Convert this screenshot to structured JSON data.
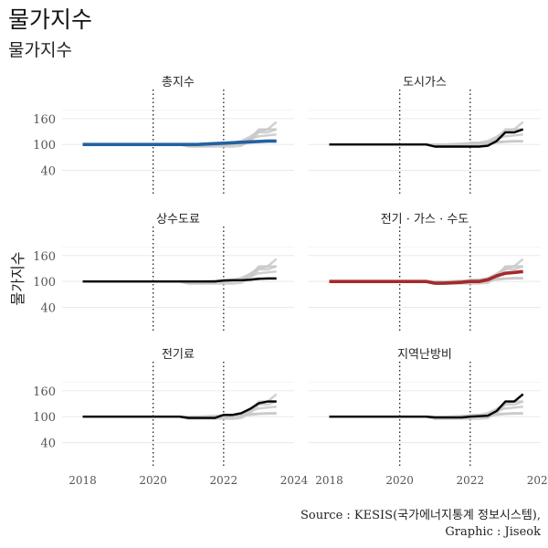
{
  "title": "물가지수",
  "subtitle": "물가지수",
  "ylabel": "물가지수",
  "caption": {
    "line1": "Source : KESIS(국가에너지통계 정보시스템),",
    "line2": "Graphic : Jiseok"
  },
  "colors": {
    "background_series": "#c8c8c8",
    "highlight_black": "#000000",
    "highlight_blue": "#2461a0",
    "highlight_red": "#a52a2a",
    "grid": "#ebebeb",
    "vline": "#222222"
  },
  "chart_data": {
    "type": "line",
    "layout": "small multiples, 3 rows x 2 columns",
    "x": [
      "2018-01",
      "2018-04",
      "2018-07",
      "2018-10",
      "2019-01",
      "2019-04",
      "2019-07",
      "2019-10",
      "2020-01",
      "2020-04",
      "2020-07",
      "2020-10",
      "2021-01",
      "2021-04",
      "2021-07",
      "2021-10",
      "2022-01",
      "2022-04",
      "2022-07",
      "2022-10",
      "2023-01",
      "2023-04",
      "2023-07"
    ],
    "xlim": [
      "2017-06",
      "2024-01"
    ],
    "x_ticks": [
      "2018",
      "2020",
      "2022",
      "2024"
    ],
    "ylim": [
      20,
      185
    ],
    "y_ticks": [
      40,
      100,
      160
    ],
    "vlines": [
      "2020-01",
      "2022-01"
    ],
    "grid": true,
    "background_series_note": "all six series drawn in grey behind each panel",
    "series": [
      {
        "name": "총지수",
        "panel": 0,
        "color": "#2461a0",
        "values": [
          100,
          100,
          100,
          100,
          100,
          100,
          100,
          100,
          100,
          100,
          100,
          100,
          100,
          100,
          101,
          102,
          103,
          104,
          105,
          106,
          107,
          108,
          108
        ]
      },
      {
        "name": "도시가스",
        "panel": 1,
        "color": "#000000",
        "values": [
          100,
          100,
          100,
          100,
          100,
          100,
          100,
          100,
          100,
          100,
          100,
          100,
          95,
          95,
          95,
          95,
          95,
          95,
          97,
          108,
          128,
          128,
          135
        ]
      },
      {
        "name": "상수도료",
        "panel": 2,
        "color": "#000000",
        "values": [
          100,
          100,
          100,
          100,
          100,
          100,
          100,
          100,
          100,
          100,
          100,
          100,
          100,
          100,
          100,
          100,
          102,
          103,
          103,
          104,
          106,
          107,
          107
        ]
      },
      {
        "name": "전기 · 가스 · 수도",
        "panel": 3,
        "color": "#a52a2a",
        "values": [
          100,
          100,
          100,
          100,
          100,
          100,
          100,
          100,
          100,
          100,
          100,
          100,
          96,
          96,
          97,
          98,
          100,
          100,
          104,
          113,
          119,
          121,
          123
        ]
      },
      {
        "name": "전기료",
        "panel": 4,
        "color": "#000000",
        "values": [
          100,
          100,
          100,
          100,
          100,
          100,
          100,
          100,
          100,
          100,
          100,
          100,
          97,
          97,
          97,
          97,
          104,
          104,
          108,
          118,
          131,
          135,
          135
        ]
      },
      {
        "name": "지역난방비",
        "panel": 5,
        "color": "#000000",
        "values": [
          100,
          100,
          100,
          100,
          100,
          100,
          100,
          100,
          100,
          100,
          100,
          100,
          98,
          98,
          98,
          98,
          100,
          101,
          102,
          113,
          135,
          135,
          152
        ]
      }
    ]
  }
}
